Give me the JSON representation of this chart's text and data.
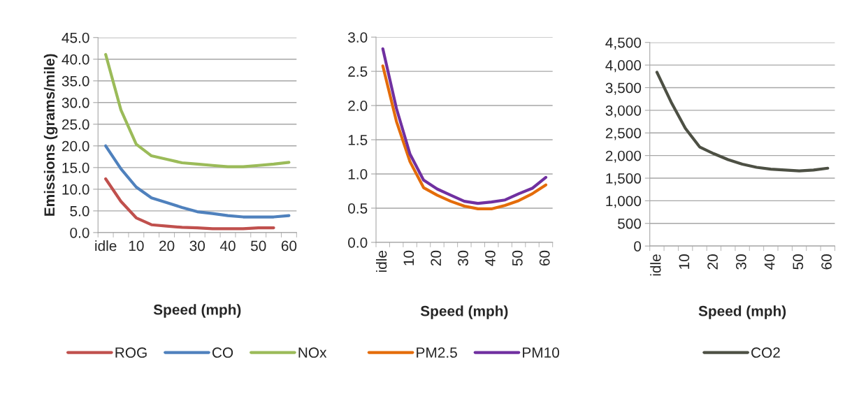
{
  "chart_data": [
    {
      "type": "line",
      "xlabel": "Speed (mph)",
      "ylabel": "Emissions (grams/mile)",
      "categories": [
        "idle",
        null,
        "10",
        null,
        "20",
        null,
        "30",
        null,
        "40",
        null,
        "50",
        null,
        "60"
      ],
      "series": [
        {
          "name": "ROG",
          "color": "#c0504d",
          "values": [
            12.4,
            7.2,
            3.4,
            1.8,
            1.5,
            1.2,
            1.1,
            0.9,
            0.9,
            0.9,
            1.1,
            1.1,
            null
          ]
        },
        {
          "name": "CO",
          "color": "#4f81bd",
          "values": [
            20.0,
            14.7,
            10.5,
            8.0,
            6.9,
            5.8,
            4.8,
            4.4,
            3.9,
            3.6,
            3.6,
            3.6,
            3.9
          ]
        },
        {
          "name": "NOx",
          "color": "#9bbb59",
          "values": [
            41.1,
            28.3,
            20.4,
            17.7,
            16.9,
            16.1,
            15.8,
            15.5,
            15.2,
            15.2,
            15.5,
            15.8,
            16.2
          ]
        }
      ],
      "ylim": [
        0,
        45
      ],
      "yticks": [
        {
          "value": 0,
          "label": "0.0"
        },
        {
          "value": 5,
          "label": "5.0"
        },
        {
          "value": 10,
          "label": "10.0"
        },
        {
          "value": 15,
          "label": "15.0"
        },
        {
          "value": 20,
          "label": "20.0"
        },
        {
          "value": 25,
          "label": "25.0"
        },
        {
          "value": 30,
          "label": "30.0"
        },
        {
          "value": 35,
          "label": "35.0"
        },
        {
          "value": 40,
          "label": "40.0"
        },
        {
          "value": 45,
          "label": "45.0"
        }
      ],
      "grid": "y",
      "legend": "bottom"
    },
    {
      "type": "line",
      "xlabel": "Speed (mph)",
      "categories": [
        "idle",
        null,
        "10",
        null,
        "20",
        null,
        "30",
        null,
        "40",
        null,
        "50",
        null,
        "60"
      ],
      "series": [
        {
          "name": "PM2.5",
          "color": "#e46c0a",
          "values": [
            2.58,
            1.77,
            1.18,
            0.8,
            0.69,
            0.6,
            0.53,
            0.49,
            0.49,
            0.54,
            0.61,
            0.71,
            0.84
          ]
        },
        {
          "name": "PM10",
          "color": "#7030a0",
          "values": [
            2.83,
            1.96,
            1.29,
            0.91,
            0.78,
            0.69,
            0.6,
            0.57,
            0.59,
            0.62,
            0.71,
            0.79,
            0.95
          ]
        }
      ],
      "ylim": [
        0,
        3
      ],
      "yticks": [
        {
          "value": 0,
          "label": "0.0"
        },
        {
          "value": 0.5,
          "label": "0.5"
        },
        {
          "value": 1,
          "label": "1.0"
        },
        {
          "value": 1.5,
          "label": "1.5"
        },
        {
          "value": 2,
          "label": "2.0"
        },
        {
          "value": 2.5,
          "label": "2.5"
        },
        {
          "value": 3,
          "label": "3.0"
        }
      ],
      "grid": "y",
      "legend": "bottom"
    },
    {
      "type": "line",
      "xlabel": "Speed (mph)",
      "categories": [
        "idle",
        null,
        "10",
        null,
        "20",
        null,
        "30",
        null,
        "40",
        null,
        "50",
        null,
        "60"
      ],
      "series": [
        {
          "name": "CO2",
          "color": "#4d5044",
          "values": [
            3840,
            3180,
            2600,
            2190,
            2040,
            1910,
            1810,
            1740,
            1700,
            1680,
            1660,
            1680,
            1720
          ]
        }
      ],
      "ylim": [
        0,
        4500
      ],
      "yticks": [
        {
          "value": 0,
          "label": "0"
        },
        {
          "value": 500,
          "label": "500"
        },
        {
          "value": 1000,
          "label": "1,000"
        },
        {
          "value": 1500,
          "label": "1,500"
        },
        {
          "value": 2000,
          "label": "2,000"
        },
        {
          "value": 2500,
          "label": "2,500"
        },
        {
          "value": 3000,
          "label": "3,000"
        },
        {
          "value": 3500,
          "label": "3,500"
        },
        {
          "value": 4000,
          "label": "4,000"
        },
        {
          "value": 4500,
          "label": "4,500"
        }
      ],
      "grid": "y",
      "legend": "bottom"
    }
  ]
}
